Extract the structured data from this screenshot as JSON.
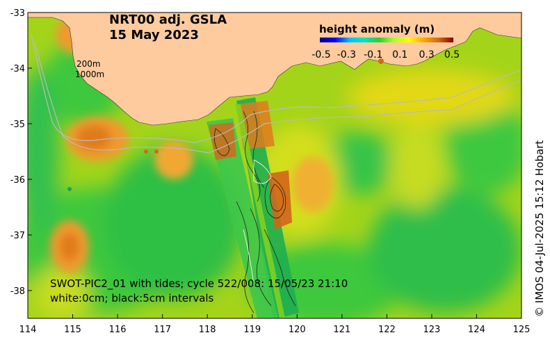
{
  "title": {
    "line1": "NRT00 adj. GSLA",
    "line2": "15 May 2023"
  },
  "legend": {
    "title": "height anomaly (m)",
    "ticks": [
      "-0.5",
      "-0.3",
      "-0.1",
      "0.1",
      "0.3",
      "0.5"
    ],
    "colors": [
      "#00008b",
      "#0000ff",
      "#00bfff",
      "#00e5c0",
      "#32cd32",
      "#adff2f",
      "#ffff00",
      "#ffa500",
      "#d2691e",
      "#8b0000"
    ]
  },
  "isobaths": {
    "shallow": "200m",
    "deep": "1000m"
  },
  "axes": {
    "x_ticks": [
      "114",
      "115",
      "116",
      "117",
      "118",
      "119",
      "120",
      "121",
      "122",
      "123",
      "124",
      "125"
    ],
    "y_ticks": [
      "-33",
      "-34",
      "-35",
      "-36",
      "-37",
      "-38"
    ],
    "lon_range": [
      114,
      125
    ],
    "lat_range": [
      -38.5,
      -33
    ]
  },
  "swot_note": {
    "line1": "SWOT-PIC2_01 with tides; cycle 522/008: 15/05/23 21:10",
    "line2": "white:0cm; black:5cm intervals"
  },
  "credit": "© IMOS 04-Jul-2025 15:12 Hobart",
  "colors": {
    "land": "#fdcb9e",
    "ocean_base": "#a4d41a",
    "green": "#3cc83c",
    "dark_green": "#1bb04a",
    "orange": "#ef9a2d",
    "yellow": "#e6d21a"
  }
}
